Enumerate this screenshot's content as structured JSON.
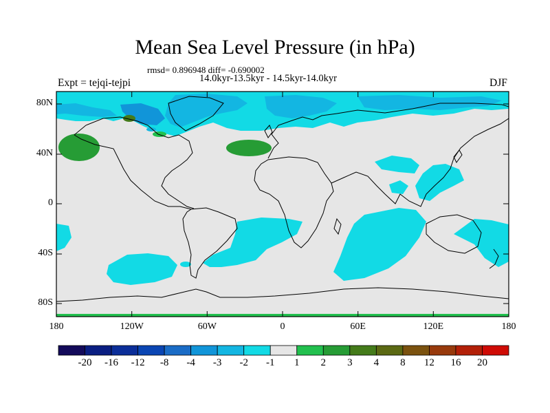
{
  "title": "Mean Sea Level Pressure (in hPa)",
  "stats_line": "rmsd= 0.896948 diff= -0.690002",
  "periods_line": "14.0kyr-13.5kyr - 14.5kyr-14.0kyr",
  "experiment_label": "Expt = tejqi-tejpi",
  "season_label": "DJF",
  "y_axis_ticks": [
    "80N",
    "40N",
    "0",
    "40S",
    "80S"
  ],
  "x_axis_ticks": [
    "180",
    "120W",
    "60W",
    "0",
    "60E",
    "120E",
    "180"
  ],
  "colorbar": {
    "colors": [
      "#130a5a",
      "#0a1e82",
      "#0b2e99",
      "#0a45b3",
      "#1a6cc6",
      "#1195d9",
      "#13b6e2",
      "#12dae5",
      "#e6e6e6",
      "#22c04e",
      "#269c35",
      "#447b1a",
      "#5b6913",
      "#7b520f",
      "#983a0c",
      "#b32008",
      "#cf0b05"
    ],
    "labels": [
      "-20",
      "-16",
      "-12",
      "-8",
      "-4",
      "-3",
      "-2",
      "-1",
      "1",
      "2",
      "3",
      "4",
      "8",
      "12",
      "16",
      "20"
    ]
  },
  "colors": {
    "background_land_sea": "#e6e6e6",
    "neg_1_to_2": "#12dae5",
    "neg_2_to_3": "#13b6e2",
    "neg_3_to_4": "#1195d9",
    "pos_1_to_2": "#22c04e",
    "pos_2_to_3": "#269c35",
    "pos_3_to_4": "#447b1a"
  }
}
